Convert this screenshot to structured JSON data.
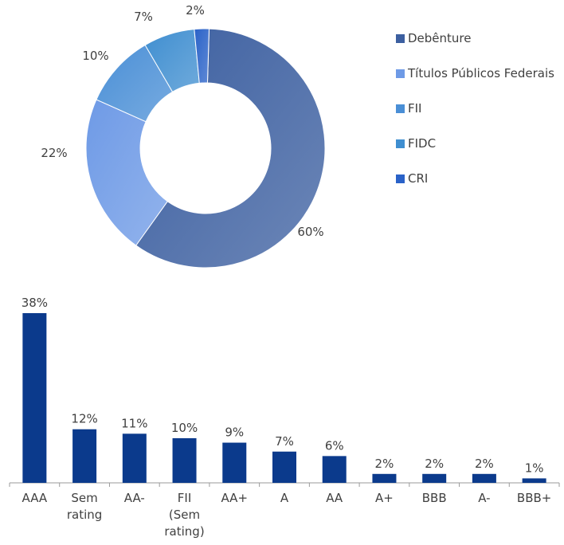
{
  "chart_data": [
    {
      "type": "pie",
      "donut": true,
      "categories": [
        "Debênture",
        "Títulos Públicos Federais",
        "FII",
        "FIDC",
        "CRI"
      ],
      "values": [
        60,
        22,
        10,
        7,
        2
      ],
      "labels": [
        "60%",
        "22%",
        "10%",
        "7%",
        "2%"
      ],
      "colors": [
        "#3c5fa0",
        "#6e9ae6",
        "#4a8fd6",
        "#3f8ed0",
        "#2a62c8"
      ],
      "legend_position": "right"
    },
    {
      "type": "bar",
      "categories": [
        "AAA",
        "Sem rating",
        "AA-",
        "FII (Sem rating)",
        "AA+",
        "A",
        "AA",
        "A+",
        "BBB",
        "A-",
        "BBB+"
      ],
      "category_lines": [
        [
          "AAA"
        ],
        [
          "Sem",
          "rating"
        ],
        [
          "AA-"
        ],
        [
          "FII",
          "(Sem",
          "rating)"
        ],
        [
          "AA+"
        ],
        [
          "A"
        ],
        [
          "AA"
        ],
        [
          "A+"
        ],
        [
          "BBB"
        ],
        [
          "A-"
        ],
        [
          "BBB+"
        ]
      ],
      "values": [
        38,
        12,
        11,
        10,
        9,
        7,
        6,
        2,
        2,
        2,
        1
      ],
      "labels": [
        "38%",
        "12%",
        "11%",
        "10%",
        "9%",
        "7%",
        "6%",
        "2%",
        "2%",
        "2%",
        "1%"
      ],
      "bar_color": "#0b3a8c",
      "grid": false
    }
  ]
}
